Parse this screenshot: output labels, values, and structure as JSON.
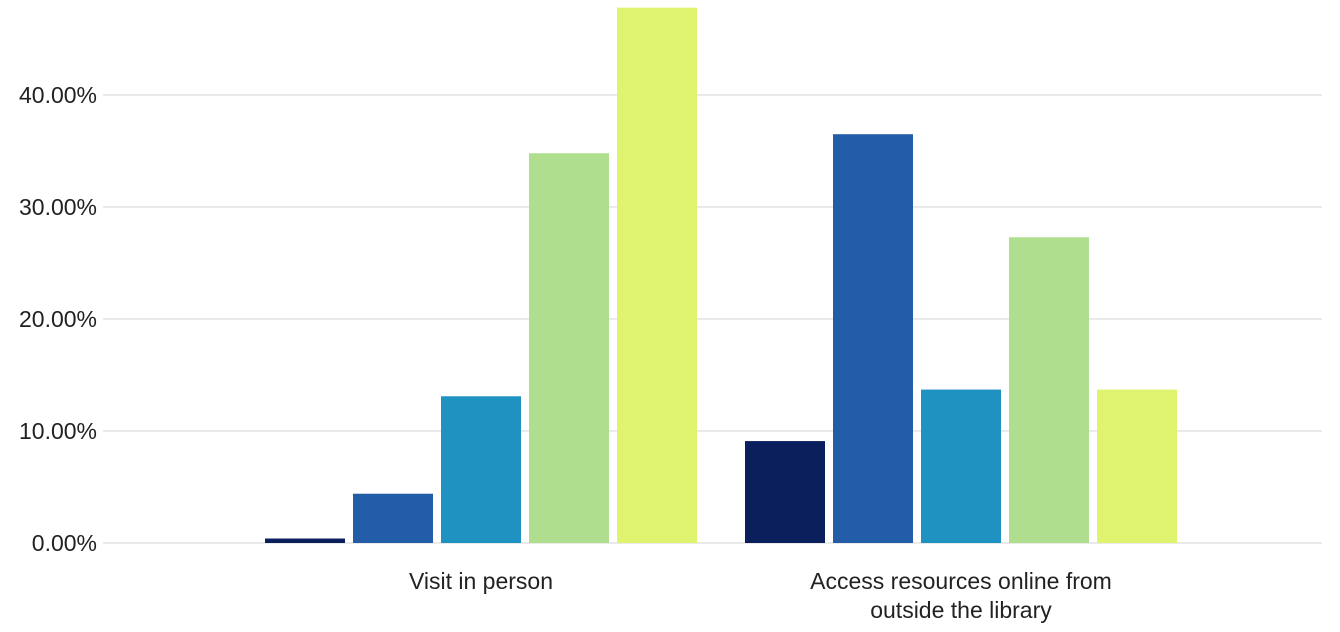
{
  "chart_data": {
    "type": "bar",
    "title": "",
    "xlabel": "",
    "ylabel": "",
    "categories": [
      "Visit in person",
      "Access resources online from outside the library"
    ],
    "category_label_lines": [
      [
        "Visit in person"
      ],
      [
        "Access resources online from",
        "outside the library"
      ]
    ],
    "series": [
      {
        "color": "#0b1f5c",
        "values": [
          0.4,
          9.1
        ]
      },
      {
        "color": "#235da8",
        "values": [
          4.4,
          36.5
        ]
      },
      {
        "color": "#1f92c2",
        "values": [
          13.1,
          13.7
        ]
      },
      {
        "color": "#afde8f",
        "values": [
          34.8,
          27.3
        ]
      },
      {
        "color": "#e0f36f",
        "values": [
          47.8,
          13.7
        ]
      }
    ],
    "ylim": [
      0,
      48
    ],
    "yticks": [
      0,
      10,
      20,
      30,
      40
    ],
    "ytick_labels": [
      "0.00%",
      "10.00%",
      "20.00%",
      "30.00%",
      "40.00%"
    ],
    "grid": true,
    "legend": "none",
    "gridline_color": "#e3e3e3"
  }
}
